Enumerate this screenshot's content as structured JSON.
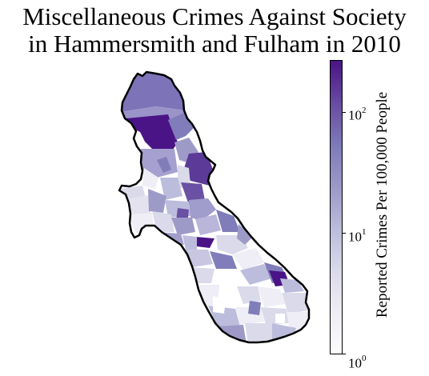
{
  "title": {
    "line1": "Miscellaneous Crimes Against Society",
    "line2": "in Hammersmith and Fulham in 2010"
  },
  "colorbar": {
    "label": "Reported Crimes Per 100,000 People",
    "scale": "log",
    "range": [
      1,
      250
    ],
    "ticks": [
      {
        "base": "10",
        "exp": "0",
        "value": 1
      },
      {
        "base": "10",
        "exp": "1",
        "value": 10
      },
      {
        "base": "10",
        "exp": "2",
        "value": 100
      }
    ],
    "colormap": "Purples"
  },
  "colors": {
    "darkest": "#4a1486",
    "lightest": "#fcfbfd",
    "border": "#000000"
  }
}
